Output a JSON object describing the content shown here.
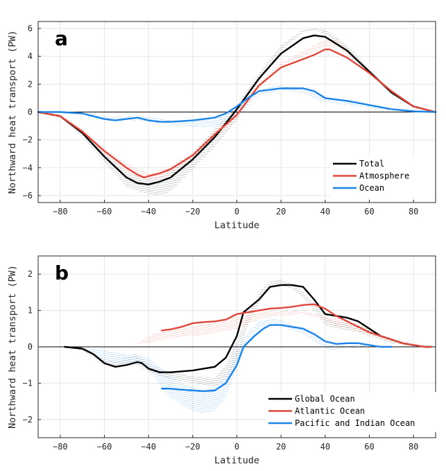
{
  "colors": {
    "black": "#000000",
    "red": "#e0473a",
    "blue": "#1a84e8"
  },
  "panels": [
    {
      "label": "a",
      "xlabel": "Latitude",
      "ylabel": "Northward heat transport (PW)"
    },
    {
      "label": "b",
      "xlabel": "Latitude",
      "ylabel": "Northward heat transport (PW)"
    }
  ],
  "chart_data": [
    {
      "type": "line",
      "panel": "a",
      "xlabel": "Latitude",
      "ylabel": "Northward heat transport (PW)",
      "xlim": [
        -90,
        90
      ],
      "ylim": [
        -6.5,
        6.5
      ],
      "xticks": [
        -80,
        -60,
        -40,
        -20,
        0,
        20,
        40,
        60,
        80
      ],
      "yticks": [
        -6,
        -4,
        -2,
        0,
        2,
        4,
        6
      ],
      "grid": true,
      "legend_position": "bottom-right",
      "series": [
        {
          "name": "Total",
          "color": "#000000",
          "x": [
            -90,
            -80,
            -70,
            -60,
            -50,
            -45,
            -40,
            -35,
            -30,
            -20,
            -10,
            0,
            10,
            20,
            30,
            35,
            40,
            50,
            60,
            70,
            80,
            90
          ],
          "y": [
            0,
            -0.3,
            -1.5,
            -3.2,
            -4.7,
            -5.1,
            -5.2,
            -5.0,
            -4.7,
            -3.4,
            -1.8,
            0.2,
            2.4,
            4.2,
            5.3,
            5.5,
            5.4,
            4.4,
            2.9,
            1.4,
            0.4,
            0
          ],
          "spread": [
            [
              -90,
              -0.1,
              0.1
            ],
            [
              -80,
              -0.4,
              -0.2
            ],
            [
              -70,
              -1.8,
              -1.3
            ],
            [
              -60,
              -3.6,
              -2.9
            ],
            [
              -50,
              -5.4,
              -4.3
            ],
            [
              -40,
              -5.9,
              -4.8
            ],
            [
              -35,
              -6.0,
              -4.6
            ],
            [
              -30,
              -5.7,
              -4.3
            ],
            [
              -20,
              -4.1,
              -3.0
            ],
            [
              -10,
              -2.5,
              -1.2
            ],
            [
              0,
              -0.6,
              0.5
            ],
            [
              10,
              2.2,
              2.8
            ],
            [
              20,
              4.4,
              4.8
            ],
            [
              30,
              5.7,
              5.9
            ],
            [
              35,
              5.9,
              6.0
            ],
            [
              40,
              5.6,
              5.9
            ],
            [
              50,
              4.3,
              4.8
            ],
            [
              60,
              2.8,
              3.1
            ],
            [
              70,
              1.3,
              1.5
            ],
            [
              80,
              0.3,
              0.5
            ],
            [
              90,
              0,
              0
            ]
          ]
        },
        {
          "name": "Atmosphere",
          "color": "#e0473a",
          "x": [
            -90,
            -80,
            -70,
            -60,
            -50,
            -45,
            -42,
            -40,
            -35,
            -30,
            -20,
            -10,
            0,
            10,
            20,
            30,
            35,
            40,
            42,
            50,
            60,
            70,
            80,
            90
          ],
          "y": [
            0,
            -0.3,
            -1.4,
            -2.8,
            -4.0,
            -4.5,
            -4.7,
            -4.6,
            -4.4,
            -4.1,
            -3.1,
            -1.6,
            -0.2,
            1.9,
            3.2,
            3.8,
            4.1,
            4.5,
            4.5,
            3.9,
            2.8,
            1.5,
            0.4,
            0
          ],
          "spread": [
            [
              -90,
              -0.1,
              0.1
            ],
            [
              -80,
              -0.3,
              -0.2
            ],
            [
              -70,
              -1.6,
              -1.2
            ],
            [
              -60,
              -3.0,
              -2.6
            ],
            [
              -50,
              -4.3,
              -3.7
            ],
            [
              -40,
              -4.9,
              -4.4
            ],
            [
              -35,
              -4.8,
              -4.2
            ],
            [
              -30,
              -4.5,
              -3.9
            ],
            [
              -20,
              -3.4,
              -2.9
            ],
            [
              -10,
              -1.9,
              -1.3
            ],
            [
              0,
              -0.6,
              0.0
            ],
            [
              10,
              1.7,
              2.1
            ],
            [
              20,
              3.3,
              3.5
            ],
            [
              30,
              4.0,
              4.4
            ],
            [
              40,
              4.7,
              5.2
            ],
            [
              45,
              4.8,
              5.3
            ],
            [
              50,
              4.1,
              4.6
            ],
            [
              60,
              2.8,
              3.0
            ],
            [
              70,
              1.4,
              1.6
            ],
            [
              80,
              0.3,
              0.5
            ],
            [
              90,
              0,
              0
            ]
          ]
        },
        {
          "name": "Ocean",
          "color": "#1a84e8",
          "x": [
            -90,
            -80,
            -70,
            -60,
            -55,
            -50,
            -45,
            -40,
            -35,
            -30,
            -20,
            -10,
            -5,
            0,
            5,
            10,
            20,
            30,
            35,
            40,
            50,
            60,
            70,
            80,
            90
          ],
          "y": [
            0,
            0,
            -0.1,
            -0.5,
            -0.6,
            -0.5,
            -0.4,
            -0.6,
            -0.7,
            -0.7,
            -0.6,
            -0.4,
            -0.1,
            0.4,
            1.0,
            1.5,
            1.7,
            1.7,
            1.5,
            1.0,
            0.8,
            0.5,
            0.2,
            0.05,
            0
          ],
          "spread": [
            [
              -90,
              0,
              0
            ],
            [
              -80,
              -0.05,
              0.05
            ],
            [
              -70,
              -0.1,
              -0.05
            ],
            [
              -60,
              -0.6,
              -0.3
            ],
            [
              -50,
              -0.6,
              -0.3
            ],
            [
              -40,
              -0.7,
              -0.3
            ],
            [
              -30,
              -0.9,
              -0.6
            ],
            [
              -20,
              -1.1,
              -0.7
            ],
            [
              -10,
              -1.1,
              -0.5
            ],
            [
              0,
              -0.3,
              0.4
            ],
            [
              10,
              1.2,
              1.6
            ],
            [
              20,
              1.6,
              1.9
            ],
            [
              30,
              1.3,
              1.7
            ],
            [
              40,
              0.7,
              1.1
            ],
            [
              50,
              0.5,
              0.8
            ],
            [
              60,
              0.3,
              0.5
            ],
            [
              70,
              0.1,
              0.2
            ],
            [
              80,
              0,
              0.05
            ],
            [
              90,
              0,
              0
            ]
          ]
        }
      ]
    },
    {
      "type": "line",
      "panel": "b",
      "xlabel": "Latitude",
      "ylabel": "Northward heat transport (PW)",
      "xlim": [
        -90,
        90
      ],
      "ylim": [
        -2.5,
        2.5
      ],
      "xticks": [
        -80,
        -60,
        -40,
        -20,
        0,
        20,
        40,
        60,
        80
      ],
      "yticks": [
        -2,
        -1,
        0,
        1,
        2
      ],
      "grid": true,
      "legend_position": "bottom-right",
      "series": [
        {
          "name": "Global Ocean",
          "color": "#000000",
          "x": [
            -78,
            -70,
            -65,
            -60,
            -55,
            -50,
            -45,
            -43,
            -40,
            -35,
            -30,
            -20,
            -10,
            -5,
            0,
            3,
            10,
            15,
            20,
            25,
            30,
            35,
            40,
            45,
            50,
            55,
            60,
            65,
            70,
            75,
            80,
            85,
            88
          ],
          "y": [
            0,
            -0.05,
            -0.2,
            -0.45,
            -0.55,
            -0.5,
            -0.42,
            -0.45,
            -0.6,
            -0.7,
            -0.7,
            -0.65,
            -0.55,
            -0.3,
            0.3,
            0.95,
            1.3,
            1.65,
            1.7,
            1.7,
            1.65,
            1.3,
            0.9,
            0.85,
            0.8,
            0.7,
            0.5,
            0.3,
            0.2,
            0.1,
            0.05,
            0,
            0
          ],
          "spread": [
            [
              -78,
              0,
              0
            ],
            [
              -70,
              -0.1,
              0.0
            ],
            [
              -60,
              -0.5,
              -0.35
            ],
            [
              -55,
              -0.55,
              -0.4
            ],
            [
              -50,
              -0.5,
              -0.3
            ],
            [
              -45,
              -0.5,
              -0.25
            ],
            [
              -40,
              -0.7,
              -0.45
            ],
            [
              -35,
              -0.8,
              -0.6
            ],
            [
              -30,
              -0.9,
              -0.7
            ],
            [
              -20,
              -1.0,
              -0.8
            ],
            [
              -10,
              -1.1,
              -0.85
            ],
            [
              -5,
              -0.9,
              -0.5
            ],
            [
              0,
              -0.4,
              0.2
            ],
            [
              5,
              0.6,
              0.9
            ],
            [
              10,
              1.2,
              1.5
            ],
            [
              15,
              1.6,
              1.8
            ],
            [
              20,
              1.7,
              1.85
            ],
            [
              25,
              1.6,
              1.75
            ],
            [
              30,
              1.35,
              1.5
            ],
            [
              35,
              1.0,
              1.2
            ],
            [
              40,
              0.6,
              0.8
            ],
            [
              45,
              0.5,
              0.7
            ],
            [
              50,
              0.45,
              0.65
            ],
            [
              55,
              0.4,
              0.6
            ],
            [
              60,
              0.35,
              0.5
            ],
            [
              65,
              0.2,
              0.3
            ],
            [
              70,
              0.1,
              0.2
            ],
            [
              80,
              0.02,
              0.05
            ],
            [
              88,
              0,
              0
            ]
          ]
        },
        {
          "name": "Atlantic Ocean",
          "color": "#e0473a",
          "x": [
            -34,
            -30,
            -25,
            -20,
            -15,
            -10,
            -5,
            0,
            5,
            10,
            15,
            20,
            25,
            30,
            35,
            40,
            45,
            50,
            55,
            60,
            65,
            70,
            75,
            80,
            85,
            88
          ],
          "y": [
            0.45,
            0.48,
            0.55,
            0.65,
            0.68,
            0.7,
            0.75,
            0.9,
            0.95,
            1.0,
            1.05,
            1.07,
            1.1,
            1.15,
            1.17,
            1.05,
            0.85,
            0.7,
            0.55,
            0.4,
            0.3,
            0.2,
            0.1,
            0.05,
            0,
            0
          ],
          "spread": [
            [
              -45,
              0.05,
              0.1
            ],
            [
              -40,
              0.1,
              0.3
            ],
            [
              -34,
              0.2,
              0.45
            ],
            [
              -30,
              0.25,
              0.48
            ],
            [
              -20,
              0.3,
              0.55
            ],
            [
              -10,
              0.35,
              0.65
            ],
            [
              0,
              0.5,
              0.85
            ],
            [
              10,
              0.75,
              0.95
            ],
            [
              20,
              0.85,
              1.0
            ],
            [
              30,
              0.9,
              0.98
            ],
            [
              40,
              0.75,
              0.85
            ],
            [
              45,
              0.55,
              0.8
            ],
            [
              50,
              0.5,
              0.7
            ],
            [
              55,
              0.4,
              0.6
            ],
            [
              60,
              0.3,
              0.5
            ],
            [
              65,
              0.2,
              0.35
            ],
            [
              70,
              0.15,
              0.25
            ],
            [
              80,
              0.02,
              0.08
            ],
            [
              88,
              0,
              0
            ]
          ]
        },
        {
          "name": "Pacific and Indian Ocean",
          "color": "#1a84e8",
          "x": [
            -34,
            -30,
            -25,
            -20,
            -15,
            -10,
            -5,
            0,
            3,
            8,
            12,
            15,
            20,
            25,
            30,
            35,
            40,
            45,
            50,
            55,
            60,
            65,
            70
          ],
          "y": [
            -1.15,
            -1.15,
            -1.18,
            -1.2,
            -1.22,
            -1.2,
            -1.0,
            -0.5,
            0.0,
            0.3,
            0.5,
            0.6,
            0.6,
            0.55,
            0.5,
            0.35,
            0.15,
            0.08,
            0.1,
            0.1,
            0.05,
            0.0,
            0.0
          ],
          "spread": [
            [
              -90,
              0,
              0
            ],
            [
              -78,
              0,
              0
            ],
            [
              -70,
              -0.05,
              0.0
            ],
            [
              -60,
              -0.4,
              -0.1
            ],
            [
              -50,
              -0.5,
              -0.2
            ],
            [
              -45,
              -0.4,
              -0.2
            ],
            [
              -40,
              -0.6,
              -0.3
            ],
            [
              -34,
              -1.15,
              -0.6
            ],
            [
              -30,
              -1.4,
              -0.8
            ],
            [
              -25,
              -1.6,
              -1.0
            ],
            [
              -20,
              -1.75,
              -1.1
            ],
            [
              -15,
              -1.85,
              -1.2
            ],
            [
              -10,
              -1.75,
              -1.1
            ],
            [
              -5,
              -1.4,
              -0.8
            ],
            [
              0,
              -0.6,
              -0.1
            ],
            [
              5,
              0.1,
              0.4
            ],
            [
              10,
              0.5,
              0.7
            ],
            [
              15,
              0.65,
              0.8
            ],
            [
              20,
              0.6,
              0.75
            ],
            [
              25,
              0.45,
              0.6
            ],
            [
              30,
              0.35,
              0.5
            ],
            [
              35,
              0.15,
              0.3
            ],
            [
              40,
              -0.05,
              0.1
            ],
            [
              45,
              -0.1,
              0.05
            ],
            [
              50,
              -0.05,
              0.05
            ],
            [
              60,
              0,
              0.05
            ],
            [
              70,
              0,
              0
            ]
          ]
        }
      ]
    }
  ]
}
